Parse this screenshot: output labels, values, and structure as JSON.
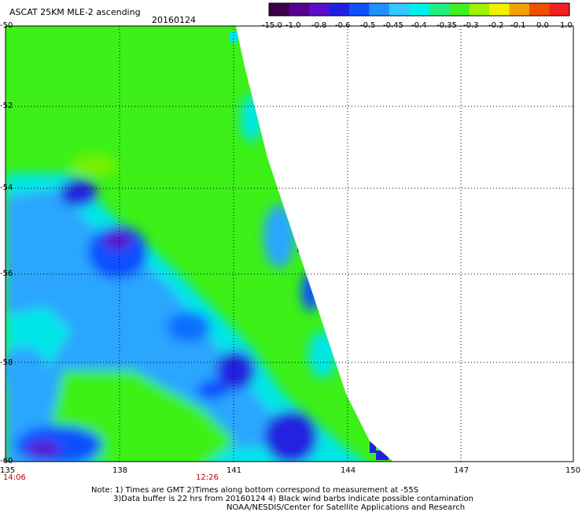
{
  "header": {
    "title": "ASCAT 25KM MLE-2 ascending",
    "date": "20160124"
  },
  "colorbar": {
    "labels": [
      "-15.0",
      "-1.0",
      "-0.8",
      "-0.6",
      "-0.5",
      "-0.45",
      "-0.4",
      "-0.35",
      "-0.3",
      "-0.2",
      "-0.1",
      "0.0",
      "1.0"
    ],
    "colors": [
      "#3a0048",
      "#5a0090",
      "#5a10c8",
      "#2020e0",
      "#1050ff",
      "#2090ff",
      "#30c8ff",
      "#00f0f0",
      "#20f080",
      "#40f020",
      "#a0f000",
      "#f0f000",
      "#f0a000",
      "#f05000",
      "#f02020"
    ]
  },
  "axes": {
    "lat_labels": [
      "-50",
      "-52",
      "-54",
      "-56",
      "-58",
      "-60"
    ],
    "lon_labels": [
      "135",
      "138",
      "141",
      "144",
      "147",
      "150"
    ],
    "times": [
      "14:06",
      "12:26"
    ]
  },
  "field": {
    "colors": {
      "green": "#3cf018",
      "light_green": "#78f000",
      "cyan": "#00e6e6",
      "light_blue": "#2aa6ff",
      "blue": "#1070ff",
      "deep_blue": "#2020e0",
      "purple": "#5a10c8",
      "dark_purple": "#3a0080",
      "mask": "#ffffff"
    }
  },
  "notes": {
    "line1": "Note: 1) Times are GMT 2)Times along bottom correspond to measurement at -55S",
    "line2": "3)Data buffer is 22 hrs from 20160124 4) Black wind barbs indicate possible contamination",
    "line3": "NOAA/NESDIS/Center for Satellite Applications and Research"
  }
}
